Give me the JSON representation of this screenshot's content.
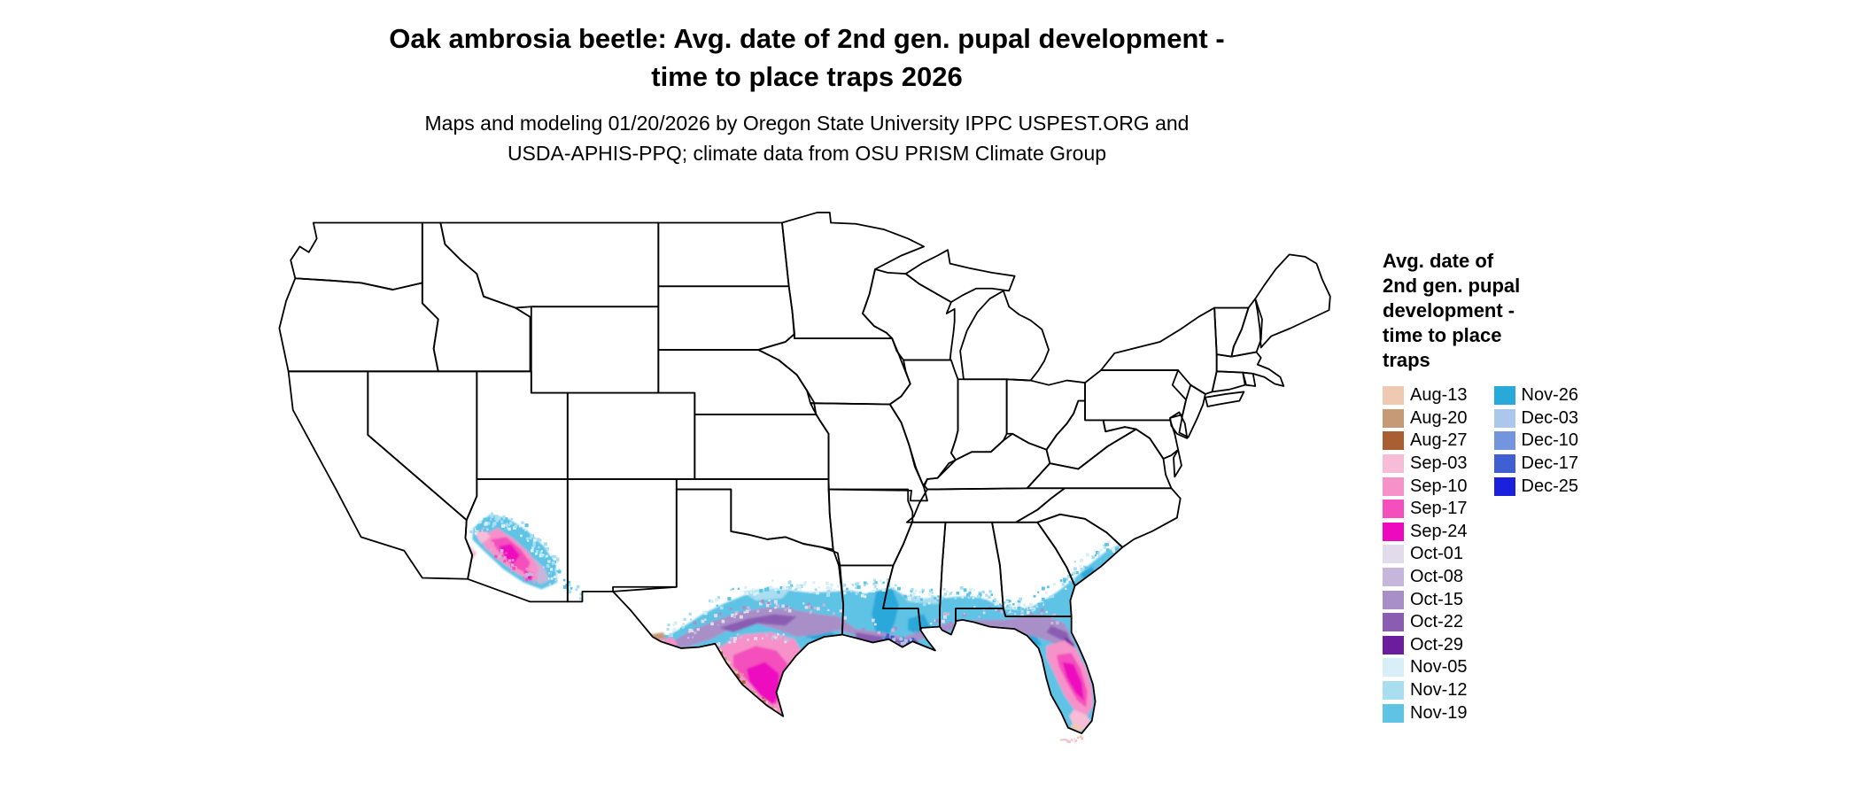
{
  "title": {
    "line1": "Oak ambrosia beetle: Avg. date of 2nd gen. pupal development -",
    "line2": "time to place traps 2026"
  },
  "subtitle": {
    "line1": "Maps and modeling 01/20/2026 by Oregon State University IPPC USPEST.ORG and",
    "line2": "USDA-APHIS-PPQ; climate data from OSU PRISM Climate Group"
  },
  "legend": {
    "title_lines": [
      "Avg. date of",
      "2nd gen. pupal",
      "development -",
      "time to place",
      "traps"
    ],
    "columns": [
      15,
      5
    ],
    "entries": [
      {
        "label": "Aug-13",
        "color": "#EFC9B2"
      },
      {
        "label": "Aug-20",
        "color": "#C59A74"
      },
      {
        "label": "Aug-27",
        "color": "#AA5F32"
      },
      {
        "label": "Sep-03",
        "color": "#F7BCD8"
      },
      {
        "label": "Sep-10",
        "color": "#F692C9"
      },
      {
        "label": "Sep-17",
        "color": "#F44FBD"
      },
      {
        "label": "Sep-24",
        "color": "#ED09BE"
      },
      {
        "label": "Oct-01",
        "color": "#E2DBEC"
      },
      {
        "label": "Oct-08",
        "color": "#C6B6DC"
      },
      {
        "label": "Oct-15",
        "color": "#A98FC8"
      },
      {
        "label": "Oct-22",
        "color": "#8A5DB2"
      },
      {
        "label": "Oct-29",
        "color": "#6C1D9E"
      },
      {
        "label": "Nov-05",
        "color": "#D8EFF8"
      },
      {
        "label": "Nov-12",
        "color": "#A9DEF1"
      },
      {
        "label": "Nov-19",
        "color": "#5FC3E5"
      },
      {
        "label": "Nov-26",
        "color": "#29A8DA"
      },
      {
        "label": "Dec-03",
        "color": "#ABC8EC"
      },
      {
        "label": "Dec-10",
        "color": "#7395DE"
      },
      {
        "label": "Dec-17",
        "color": "#3E60D2"
      },
      {
        "label": "Dec-25",
        "color": "#1A20DC"
      }
    ]
  }
}
